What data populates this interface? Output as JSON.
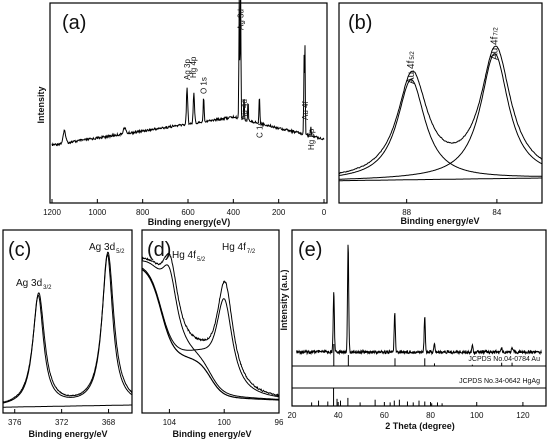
{
  "chart_data": [
    {
      "panel": "(a)",
      "type": "line",
      "xlabel": "Binding energy(eV)",
      "ylabel": "Intensity",
      "xlim": [
        1200,
        0
      ],
      "xticks": [
        "1200",
        "1000",
        "800",
        "600",
        "400",
        "200",
        "0"
      ],
      "peaks": [
        {
          "label": "Ag 3p",
          "x": 604
        },
        {
          "label": "Hg 4p",
          "x": 577
        },
        {
          "label": "O 1s",
          "x": 531
        },
        {
          "label": "Ag 3d",
          "x": 368
        },
        {
          "label": "Au 4d",
          "x": 353
        },
        {
          "label": "C 1s",
          "x": 285
        },
        {
          "label": "Au 4f",
          "x": 84
        },
        {
          "label": "Hg 5p",
          "x": 58
        }
      ]
    },
    {
      "panel": "(b)",
      "type": "line",
      "xlabel": "Binding energy/eV",
      "xlim": [
        91,
        82
      ],
      "xticks": [
        "88",
        "84"
      ],
      "peaks": [
        {
          "label": "Au 4f",
          "sub": "5/2",
          "x": 87.8
        },
        {
          "label": "Au 4f",
          "sub": "7/2",
          "x": 84.1
        }
      ]
    },
    {
      "panel": "(c)",
      "type": "line",
      "xlabel": "Binding energy/eV",
      "xlim": [
        377,
        366
      ],
      "xticks": [
        "376",
        "372",
        "368"
      ],
      "peaks": [
        {
          "label": "Ag 3d",
          "sub": "3/2",
          "x": 374.0
        },
        {
          "label": "Ag 3d",
          "sub": "5/2",
          "x": 368.1
        }
      ]
    },
    {
      "panel": "(d)",
      "type": "line",
      "xlabel": "Binding energy/eV",
      "xlim": [
        106,
        96
      ],
      "xticks": [
        "104",
        "100",
        "96"
      ],
      "peaks": [
        {
          "label": "Hg 4f",
          "sub": "5/2",
          "x": 104.0
        },
        {
          "label": "Hg 4f",
          "sub": "7/2",
          "x": 100.0
        }
      ]
    },
    {
      "panel": "(e)",
      "type": "line",
      "xlabel": "2 Theta (degree)",
      "ylabel": "Intensity (a.u.)",
      "xlim": [
        20,
        130
      ],
      "xticks": [
        "20",
        "40",
        "60",
        "80",
        "100",
        "120"
      ],
      "xrd_peaks": [
        {
          "x": 38.1,
          "h": 0.55
        },
        {
          "x": 44.3,
          "h": 1.0
        },
        {
          "x": 64.5,
          "h": 0.35
        },
        {
          "x": 77.5,
          "h": 0.32
        },
        {
          "x": 81.7,
          "h": 0.07
        },
        {
          "x": 98.1,
          "h": 0.06
        },
        {
          "x": 110.8,
          "h": 0.04
        },
        {
          "x": 115.3,
          "h": 0.04
        }
      ],
      "references": [
        {
          "label": "JCPDS No.04-0784 Au",
          "lines": [
            38.1,
            44.4,
            64.6,
            77.5,
            81.7,
            98.1,
            110.8,
            115.3
          ],
          "heights": [
            1.0,
            0.5,
            0.35,
            0.35,
            0.12,
            0.06,
            0.15,
            0.15
          ]
        },
        {
          "label": "JCPDS No.34-0642 HgAg",
          "lines": [
            28.5,
            31.5,
            35.5,
            38.0,
            39.5,
            41.0,
            44.2,
            49.5,
            56.0,
            62.5,
            64.3,
            66.5,
            70.0,
            72.5,
            75.0,
            77.5,
            80.5,
            83.0,
            85.0
          ],
          "heights": [
            0.2,
            0.3,
            0.25,
            1.0,
            0.4,
            0.3,
            0.45,
            0.2,
            0.35,
            0.2,
            0.3,
            0.35,
            0.25,
            0.2,
            0.3,
            0.25,
            0.15,
            0.2,
            0.15
          ]
        }
      ]
    }
  ]
}
